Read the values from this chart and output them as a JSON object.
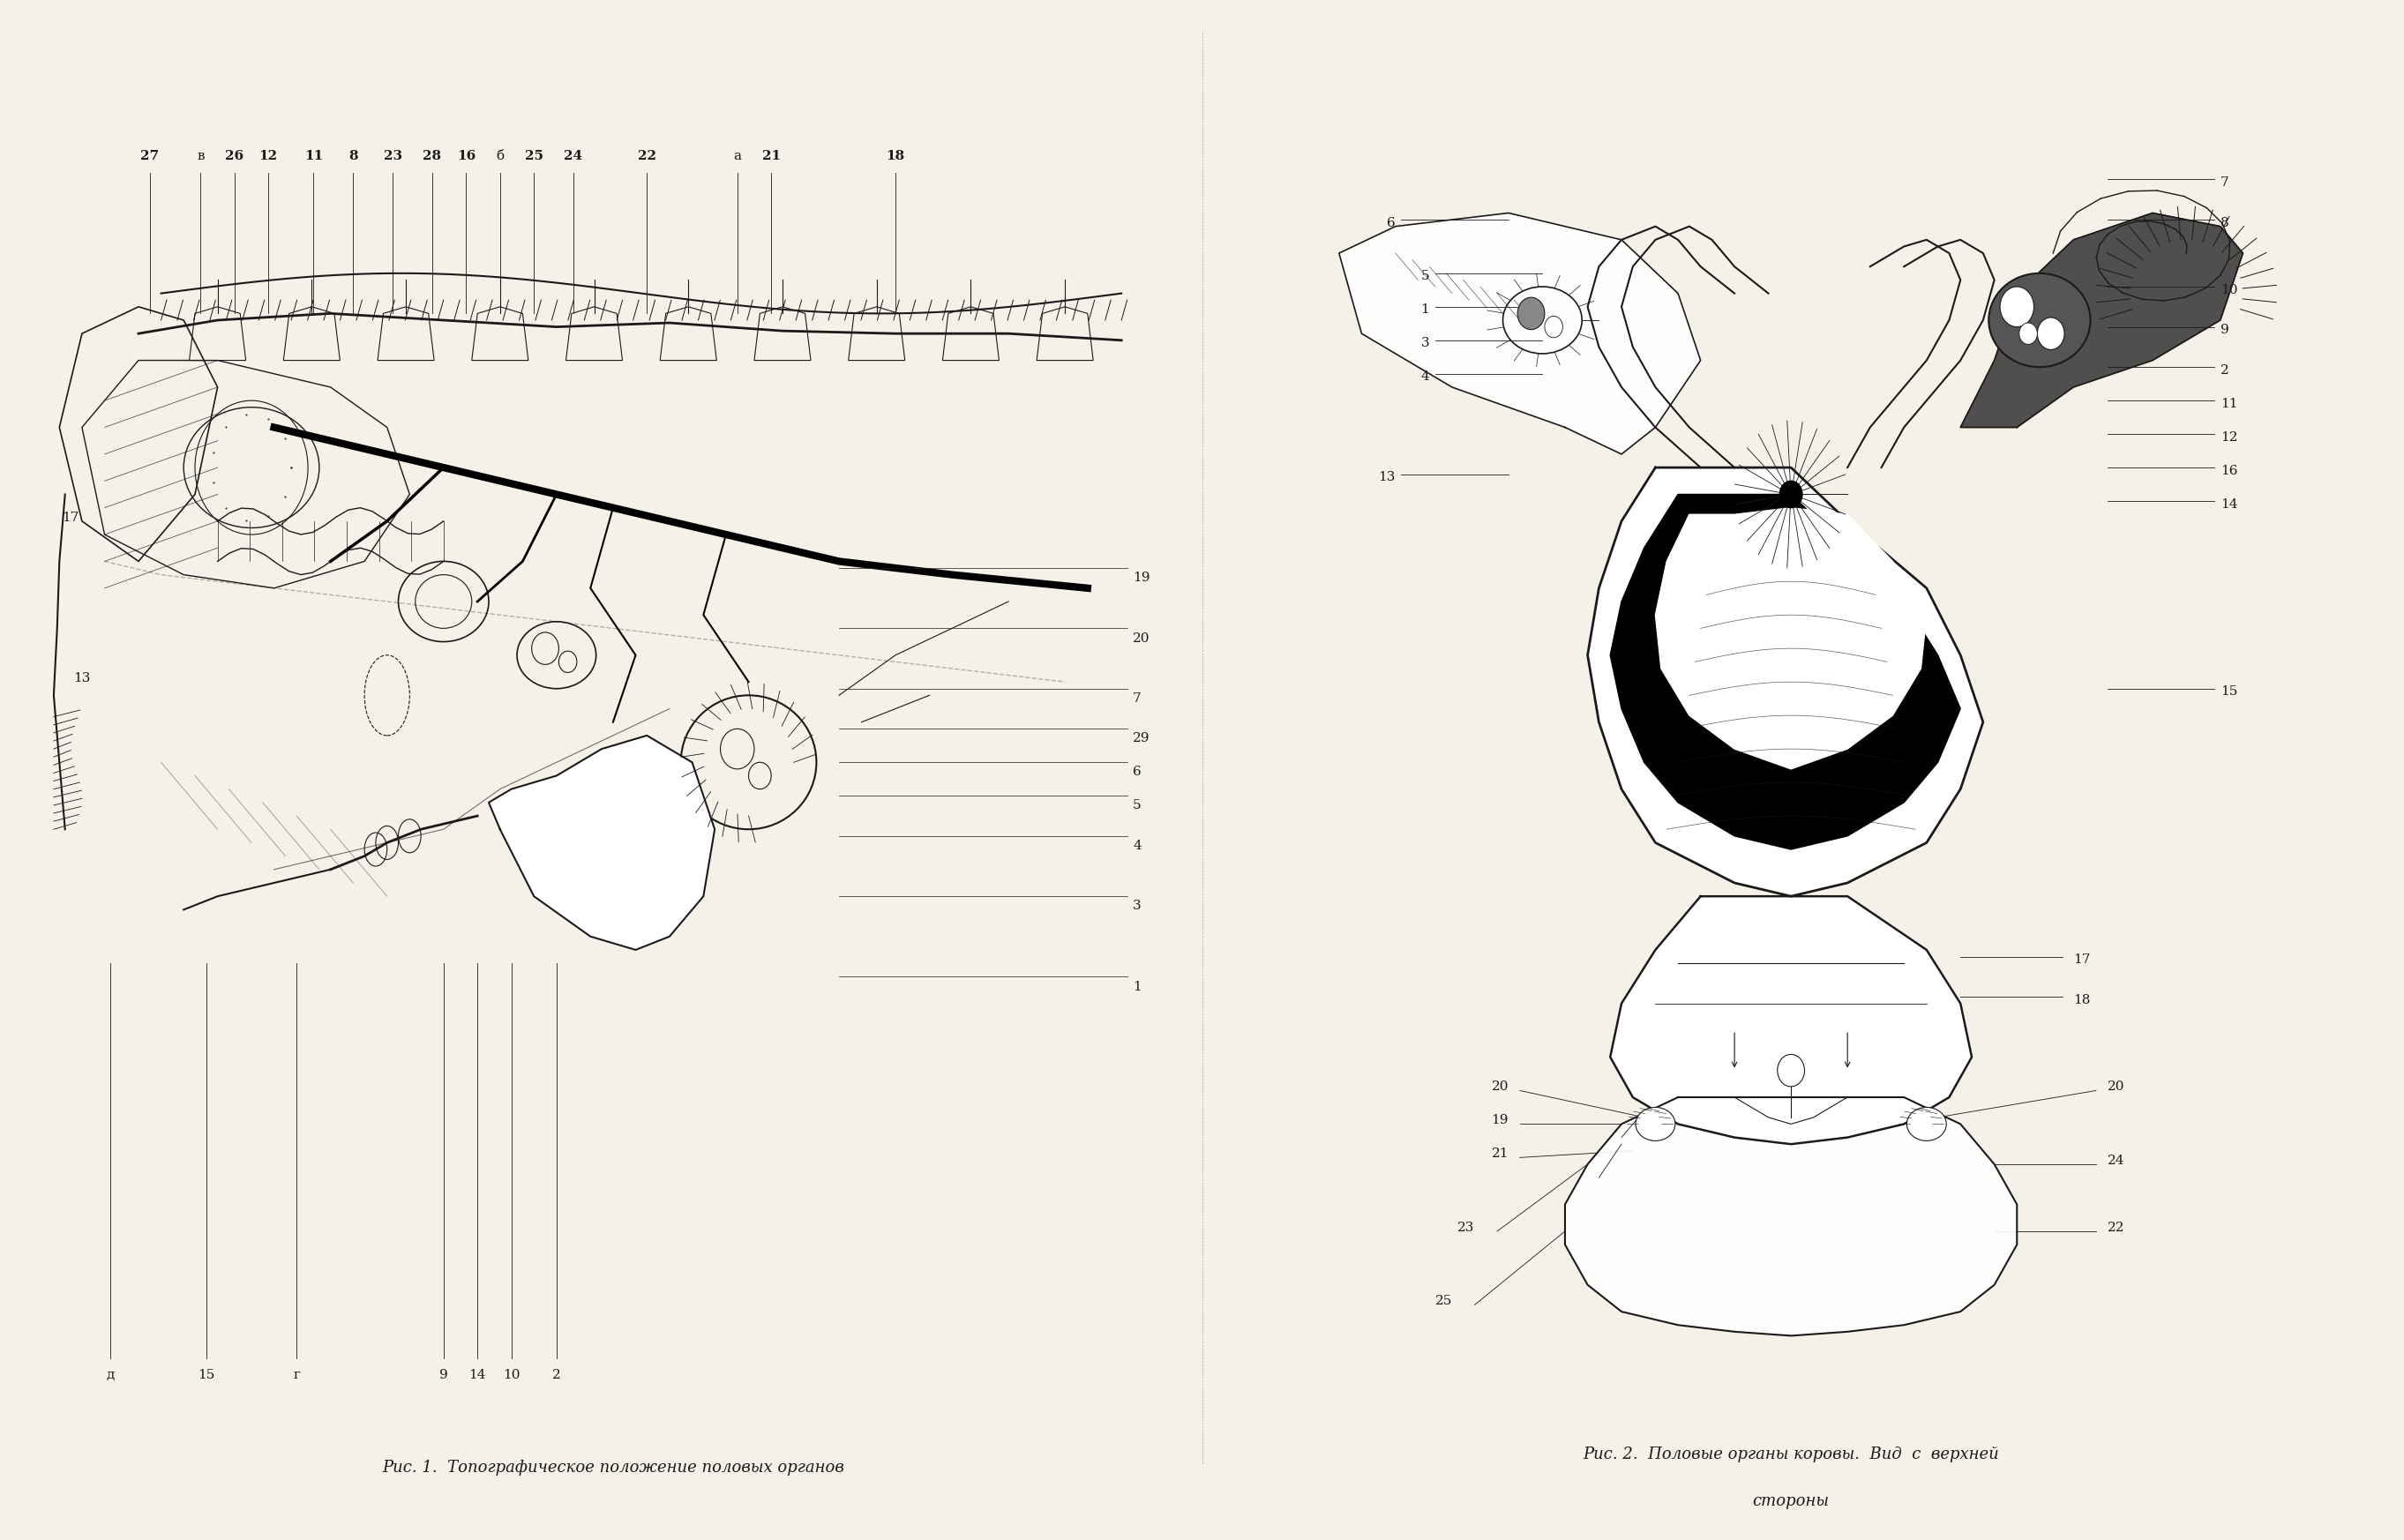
{
  "background_color": "#f5f0e8",
  "fig_width": 27.25,
  "fig_height": 17.46,
  "caption1": "Рис. 1.  Топографическое положение половых органов",
  "caption2": "Рис. 2.  Половые органы коровы.  Вид  с  верхней\n         стороны",
  "caption_fontsize": 13,
  "caption_fontfamily": "serif",
  "fig1_title_labels_top": [
    "27",
    "в",
    "26",
    "12",
    "11",
    "8",
    "23",
    "28",
    "16",
    "б",
    "25",
    "24",
    "22",
    "a",
    "21",
    "18"
  ],
  "fig1_title_labels_bottom": [
    "д",
    "15",
    "г",
    "9",
    "14",
    "10",
    "2"
  ],
  "fig1_right_labels": [
    "19",
    "20",
    "7",
    "29",
    "6",
    "5",
    "4",
    "3",
    "1"
  ],
  "fig1_left_labels": [
    "17",
    "13"
  ],
  "fig2_left_labels": [
    "6",
    "5",
    "1",
    "3",
    "4",
    "13"
  ],
  "fig2_right_labels": [
    "7",
    "8",
    "10",
    "9",
    "2",
    "11",
    "12",
    "16",
    "14",
    "15"
  ],
  "fig2_bottom_left": [
    "20",
    "19",
    "21",
    "23",
    "25"
  ],
  "fig2_bottom_right": [
    "20",
    "24",
    "22"
  ],
  "fig2_middle": [
    "17",
    "18"
  ],
  "line_color": "#1a1a1a",
  "text_color": "#1a1a1a"
}
